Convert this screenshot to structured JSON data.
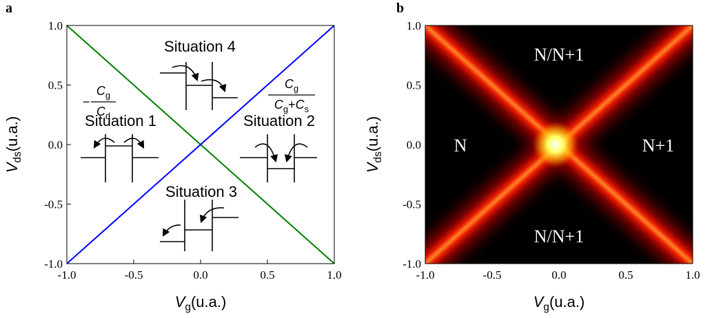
{
  "chart_data": [
    {
      "type": "line",
      "panel": "a",
      "xlabel": {
        "symbol": "V",
        "sub": "g",
        "unit": "(u.a.)"
      },
      "ylabel": {
        "symbol": "V",
        "sub": "ds",
        "unit": "(u.a.)"
      },
      "xlim": [
        -1,
        1
      ],
      "ylim": [
        -1,
        1
      ],
      "xticks": [
        {
          "value": -1,
          "label": "-1.0"
        },
        -0.5,
        {
          "value": 0,
          "label": "0.0"
        },
        0.5,
        {
          "value": 1,
          "label": "1.0"
        }
      ],
      "yticks": [
        {
          "value": -1,
          "label": "-1.0"
        },
        -0.5,
        {
          "value": 0,
          "label": "0.0"
        },
        0.5,
        {
          "value": 1,
          "label": "1.0"
        }
      ],
      "series": [
        {
          "color": "#008000",
          "x": [
            -1,
            1
          ],
          "values": [
            1,
            -1
          ]
        },
        {
          "color": "#0000ff",
          "x": [
            -1,
            1
          ],
          "values": [
            -1,
            1
          ]
        }
      ],
      "annotations": [
        "Situation 1",
        "Situation 2",
        "Situation 3",
        "Situation 4"
      ],
      "fractions": [
        {
          "prefix": "−",
          "numerator": [
            "C",
            "g"
          ],
          "denominator": [
            "C",
            "d"
          ]
        },
        {
          "numerator": [
            "C",
            "g"
          ],
          "denominator": [
            "C",
            "g",
            "+",
            "C",
            "s"
          ]
        }
      ]
    },
    {
      "type": "heatmap",
      "panel": "b",
      "xlabel": {
        "symbol": "V",
        "sub": "g",
        "unit": "(u.a.)"
      },
      "ylabel": {
        "symbol": "V",
        "sub": "ds",
        "unit": "(u.a.)"
      },
      "xlim": [
        -1,
        1
      ],
      "ylim": [
        -1,
        1
      ],
      "xticks": [
        {
          "value": -1,
          "label": "-1.0"
        },
        -0.5,
        {
          "value": 0,
          "label": "0.0"
        },
        0.5,
        {
          "value": 1,
          "label": "1.0"
        }
      ],
      "yticks": [
        {
          "value": -1,
          "label": "-1.0"
        },
        -0.5,
        {
          "value": 0,
          "label": "0.0"
        },
        0.5,
        {
          "value": 1,
          "label": "1.0"
        }
      ],
      "region_labels": [
        "N/N+1",
        "N",
        "N+1",
        "N/N+1"
      ]
    }
  ]
}
